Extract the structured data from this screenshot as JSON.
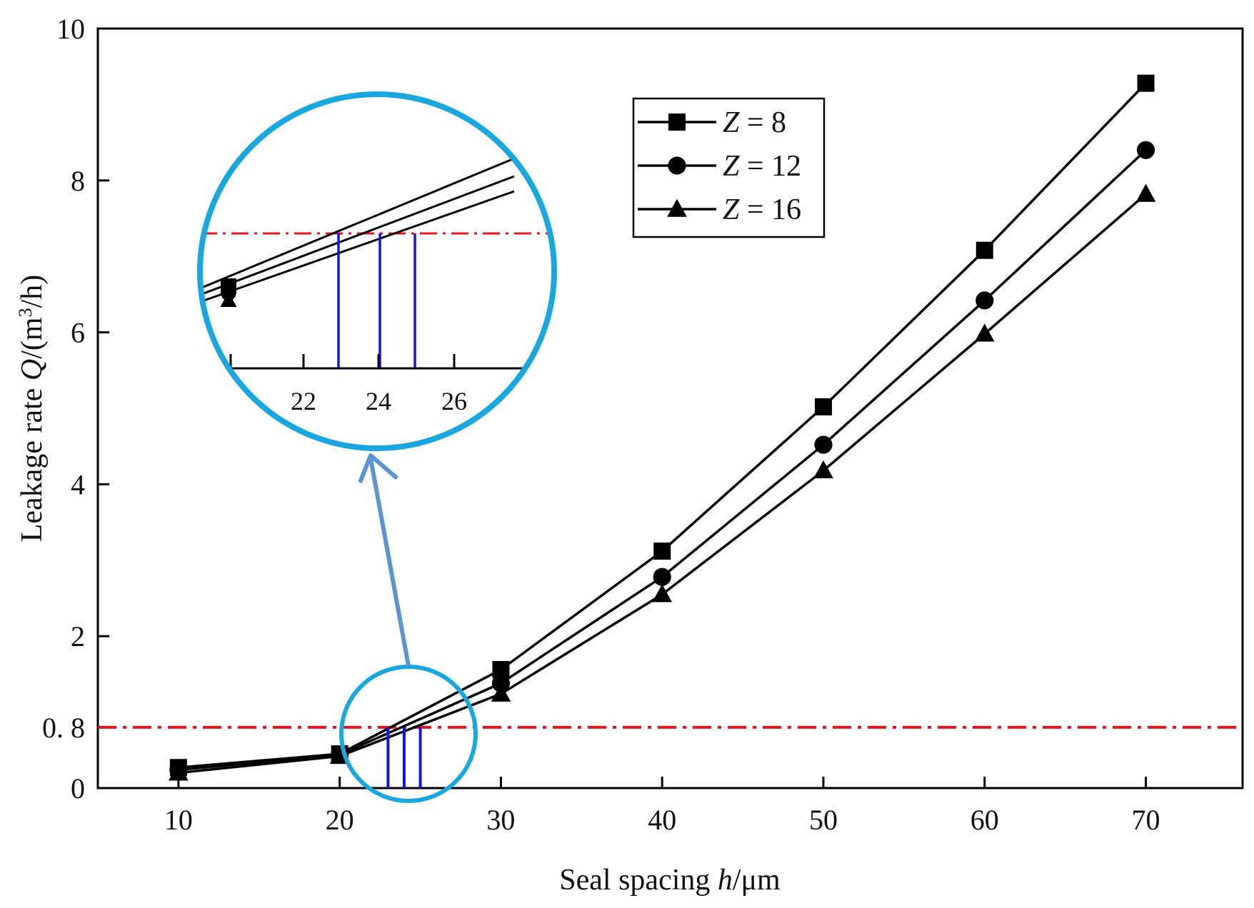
{
  "chart_data": {
    "type": "line",
    "xlabel": {
      "pre": "Seal spacing ",
      "var": "h",
      "post": "/μm"
    },
    "ylabel": {
      "pre": "Leakage rate ",
      "var": "Q",
      "post": "/(m",
      "sup": "3",
      "end": "/h)"
    },
    "xlim": [
      5,
      76
    ],
    "ylim": [
      0,
      10
    ],
    "x_ticks": [
      10,
      20,
      30,
      40,
      50,
      60,
      70
    ],
    "y_ticks": [
      0,
      2,
      4,
      6,
      8,
      10
    ],
    "y_tick_labels": [
      "0",
      "2",
      "4",
      "6",
      "8",
      "10"
    ],
    "extra_y_tick": {
      "value": 0.8,
      "label": "0. 8"
    },
    "x": [
      10,
      20,
      30,
      40,
      50,
      60,
      70
    ],
    "series": [
      {
        "name": "Z = 8",
        "var": "Z",
        "eq": " = 8",
        "marker": "square",
        "values": [
          0.27,
          0.45,
          1.56,
          3.12,
          5.02,
          7.08,
          9.28
        ]
      },
      {
        "name": "Z = 12",
        "var": "Z",
        "eq": " = 12",
        "marker": "circle",
        "values": [
          0.24,
          0.44,
          1.38,
          2.78,
          4.52,
          6.42,
          8.4
        ]
      },
      {
        "name": "Z = 16",
        "var": "Z",
        "eq": " = 16",
        "marker": "triangle",
        "values": [
          0.2,
          0.42,
          1.24,
          2.55,
          4.18,
          5.98,
          7.82
        ]
      }
    ],
    "threshold": {
      "y": 0.8,
      "color": "#e8141a",
      "style": "dash-dot"
    },
    "crossings": [
      23,
      24,
      25
    ],
    "crossing_color": "#1414e6",
    "legend_position": "top-center",
    "grid": false,
    "inset": {
      "x_tick_labels": [
        "22",
        "24",
        "26"
      ],
      "circle_color": "#1aa7e0",
      "arrow_color": "#5b95cf"
    }
  }
}
